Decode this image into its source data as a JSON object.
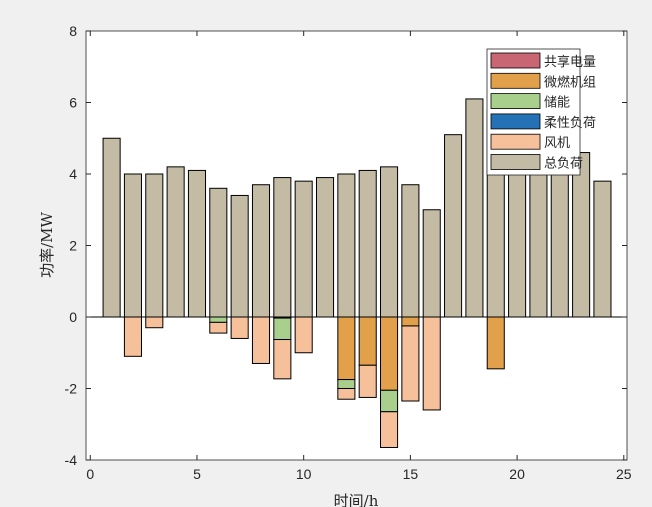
{
  "chart_data": {
    "type": "bar",
    "stacked": true,
    "title": "",
    "xlabel": "时间/h",
    "ylabel": "功率/MW",
    "xlim": [
      -0.2,
      25.15
    ],
    "ylim": [
      -4,
      8
    ],
    "xticks": [
      0,
      5,
      10,
      15,
      20,
      25
    ],
    "yticks": [
      -4,
      -2,
      0,
      2,
      4,
      6,
      8
    ],
    "legend_position": "top-right",
    "x": [
      1,
      2,
      3,
      4,
      5,
      6,
      7,
      8,
      9,
      10,
      11,
      12,
      13,
      14,
      15,
      16,
      17,
      18,
      19,
      20,
      21,
      22,
      23,
      24
    ],
    "series": [
      {
        "name": "共享电量",
        "color": "#c86673",
        "values": [
          0,
          0,
          0,
          0,
          0,
          0,
          0,
          0,
          0,
          0,
          0,
          0,
          0,
          0,
          0,
          0,
          0,
          0,
          0,
          0,
          0,
          0,
          0,
          0
        ]
      },
      {
        "name": "微燃机组",
        "color": "#e2a04a",
        "values": [
          0,
          0,
          0,
          0,
          0,
          0,
          0,
          0,
          -0.03,
          0,
          0,
          -1.75,
          -1.35,
          -2.05,
          -0.25,
          0,
          0,
          0,
          -1.45,
          0,
          0,
          0,
          0,
          0
        ]
      },
      {
        "name": "储能",
        "color": "#a9cf8c",
        "values": [
          0,
          0,
          0,
          0,
          0,
          -0.15,
          0,
          0,
          -0.6,
          0,
          0,
          -0.25,
          0,
          -0.6,
          0,
          0,
          0,
          0,
          0,
          0,
          0,
          0,
          0,
          0
        ]
      },
      {
        "name": "柔性负荷",
        "color": "#2472b5",
        "values": [
          0,
          0,
          0,
          0,
          0,
          0,
          0,
          0,
          0,
          0,
          0,
          0,
          0,
          0,
          0,
          0,
          0,
          0,
          0,
          0,
          0,
          0,
          0,
          0
        ]
      },
      {
        "name": "风机",
        "color": "#f5c09a",
        "values": [
          0,
          -1.1,
          -0.3,
          0,
          0,
          -0.3,
          -0.6,
          -1.3,
          -1.1,
          -1.0,
          0,
          -0.3,
          -0.9,
          -1.0,
          -2.1,
          -2.6,
          0,
          0,
          0,
          0,
          0,
          0,
          0,
          0
        ]
      },
      {
        "name": "总负荷",
        "color": "#c4bba5",
        "values": [
          5.0,
          4.0,
          4.0,
          4.2,
          4.1,
          3.6,
          3.4,
          3.7,
          3.9,
          3.8,
          3.9,
          4.0,
          4.1,
          4.2,
          3.7,
          3.0,
          5.1,
          6.1,
          5.8,
          5.6,
          5.3,
          5.0,
          4.6,
          3.8
        ]
      }
    ]
  }
}
